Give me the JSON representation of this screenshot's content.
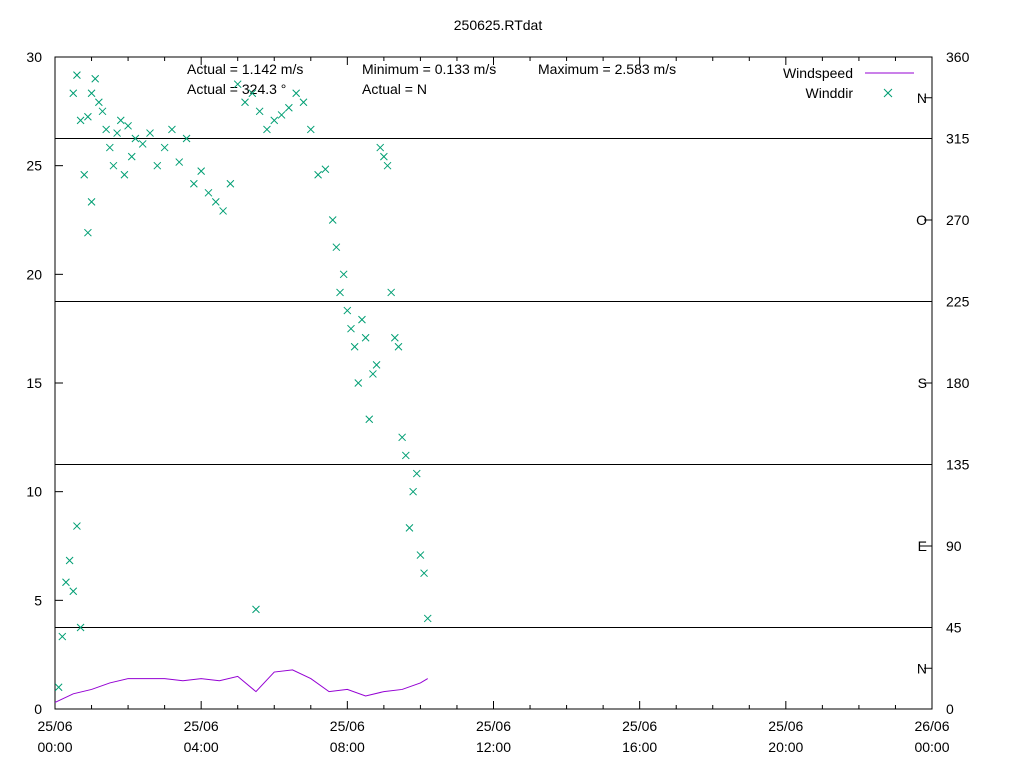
{
  "chart_data": {
    "type": "line",
    "title": "250625.RTdat",
    "x_ticks": [
      {
        "line1": "25/06",
        "line2": "00:00",
        "hours": 0
      },
      {
        "line1": "25/06",
        "line2": "04:00",
        "hours": 4
      },
      {
        "line1": "25/06",
        "line2": "08:00",
        "hours": 8
      },
      {
        "line1": "25/06",
        "line2": "12:00",
        "hours": 12
      },
      {
        "line1": "25/06",
        "line2": "16:00",
        "hours": 16
      },
      {
        "line1": "25/06",
        "line2": "20:00",
        "hours": 20
      },
      {
        "line1": "26/06",
        "line2": "00:00",
        "hours": 24
      }
    ],
    "xlim": [
      0,
      24
    ],
    "y_left": {
      "ticks": [
        "0",
        "5",
        "10",
        "15",
        "20",
        "25",
        "30"
      ],
      "ylim": [
        0,
        30
      ]
    },
    "y_right": {
      "ticks": [
        "0",
        "45",
        "90",
        "135",
        "180",
        "225",
        "270",
        "315",
        "360"
      ],
      "ylim": [
        0,
        360
      ]
    },
    "direction_labels": [
      {
        "label": "N",
        "deg": 22.5
      },
      {
        "label": "E",
        "deg": 90
      },
      {
        "label": "S",
        "deg": 180
      },
      {
        "label": "O",
        "deg": 270
      },
      {
        "label": "N",
        "deg": 337.5
      }
    ],
    "sector_lines_deg": [
      45,
      135,
      225,
      315
    ],
    "annotations": {
      "actual_speed": "Actual = 1.142 m/s",
      "actual_dir": "Actual = 324.3 °",
      "minimum": "Minimum = 0.133 m/s",
      "actual_dir_name": "Actual = N",
      "maximum": "Maximum = 2.583 m/s"
    },
    "legend": {
      "placement": "top-right"
    },
    "series": [
      {
        "name": "Windspeed",
        "axis": "left",
        "style": "line",
        "color": "#9400d3",
        "x": [
          0.0,
          0.5,
          1.0,
          1.5,
          2.0,
          2.5,
          3.0,
          3.5,
          4.0,
          4.5,
          5.0,
          5.5,
          6.0,
          6.5,
          7.0,
          7.5,
          8.0,
          8.5,
          9.0,
          9.5,
          10.0,
          10.2
        ],
        "y": [
          0.3,
          0.7,
          0.9,
          1.2,
          1.4,
          1.4,
          1.4,
          1.3,
          1.4,
          1.3,
          1.5,
          0.8,
          1.7,
          1.8,
          1.4,
          0.8,
          0.9,
          0.6,
          0.8,
          0.9,
          1.2,
          1.4
        ]
      },
      {
        "name": "Winddir",
        "axis": "right",
        "style": "points",
        "marker": "x",
        "color": "#009e73",
        "x": [
          0.1,
          0.2,
          0.3,
          0.4,
          0.5,
          0.5,
          0.6,
          0.6,
          0.7,
          0.7,
          0.8,
          0.9,
          0.9,
          1.0,
          1.0,
          1.1,
          1.2,
          1.3,
          1.4,
          1.5,
          1.6,
          1.7,
          1.8,
          1.9,
          2.0,
          2.1,
          2.2,
          2.4,
          2.6,
          2.8,
          3.0,
          3.2,
          3.4,
          3.6,
          3.8,
          4.0,
          4.2,
          4.4,
          4.6,
          4.8,
          5.0,
          5.2,
          5.4,
          5.5,
          5.6,
          5.8,
          6.0,
          6.2,
          6.4,
          6.6,
          6.8,
          7.0,
          7.2,
          7.4,
          7.6,
          7.7,
          7.8,
          7.9,
          8.0,
          8.1,
          8.2,
          8.3,
          8.4,
          8.5,
          8.6,
          8.7,
          8.8,
          8.9,
          9.0,
          9.1,
          9.2,
          9.3,
          9.4,
          9.5,
          9.6,
          9.7,
          9.8,
          9.9,
          10.0,
          10.1,
          10.2
        ],
        "y": [
          12,
          40,
          70,
          82,
          65,
          340,
          101,
          350,
          45,
          325,
          295,
          263,
          327,
          280,
          340,
          348,
          335,
          330,
          320,
          310,
          300,
          318,
          325,
          295,
          322,
          305,
          315,
          312,
          318,
          300,
          310,
          320,
          302,
          315,
          290,
          297,
          285,
          280,
          275,
          290,
          345,
          335,
          340,
          55,
          330,
          320,
          325,
          328,
          332,
          340,
          335,
          320,
          295,
          298,
          270,
          255,
          230,
          240,
          220,
          210,
          200,
          180,
          215,
          205,
          160,
          185,
          190,
          310,
          305,
          300,
          230,
          205,
          200,
          150,
          140,
          100,
          120,
          130,
          85,
          75,
          50
        ]
      }
    ]
  }
}
